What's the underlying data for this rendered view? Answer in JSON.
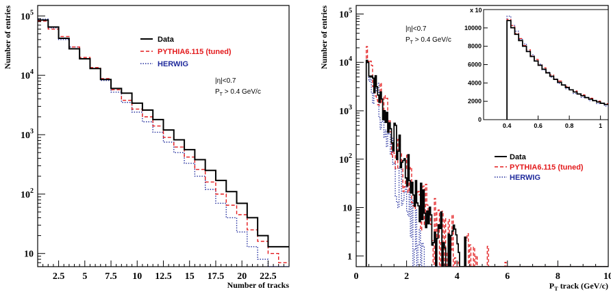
{
  "chart_data": [
    {
      "type": "histogram",
      "xlabel": "Number of tracks",
      "ylabel": "Number of entries",
      "xlim": [
        0.5,
        24.5
      ],
      "ylim": [
        6,
        150000
      ],
      "yscale": "log",
      "xticks": [
        "2.5",
        "5",
        "7.5",
        "10",
        "12.5",
        "15",
        "17.5",
        "20",
        "22.5"
      ],
      "yticks": [
        {
          "base": "10",
          "exp": "5"
        },
        {
          "base": "10",
          "exp": "4"
        },
        {
          "base": "10",
          "exp": "3"
        },
        {
          "base": "10",
          "exp": "2"
        },
        {
          "base": "10",
          "exp": ""
        }
      ],
      "bin_edges": [
        0.5,
        1.5,
        2.5,
        3.5,
        4.5,
        5.5,
        6.5,
        7.5,
        8.5,
        9.5,
        10.5,
        11.5,
        12.5,
        13.5,
        14.5,
        15.5,
        16.5,
        17.5,
        18.5,
        19.5,
        20.5,
        21.5,
        22.5,
        23.5,
        24.5
      ],
      "series": [
        {
          "name": "Data",
          "color": "#000000",
          "style": "solid",
          "values": [
            85000,
            65000,
            42000,
            28000,
            19000,
            13000,
            8500,
            6000,
            5000,
            3400,
            2600,
            1800,
            1200,
            820,
            560,
            380,
            250,
            170,
            110,
            70,
            40,
            20,
            13,
            13
          ]
        },
        {
          "name": "PYTHIA6.115 (tuned)",
          "color": "#e31a1c",
          "style": "dashed",
          "values": [
            82000,
            60000,
            45000,
            30000,
            20000,
            13500,
            8800,
            5700,
            3800,
            2700,
            2000,
            1400,
            900,
            620,
            420,
            260,
            160,
            100,
            65,
            45,
            25,
            16,
            10,
            7
          ]
        },
        {
          "name": "HERWIG",
          "color": "#1f2a9c",
          "style": "dotted",
          "values": [
            88000,
            63000,
            40000,
            30000,
            19000,
            13000,
            8200,
            5200,
            3500,
            2400,
            1650,
            1100,
            750,
            500,
            330,
            200,
            120,
            70,
            40,
            23,
            13,
            8,
            6,
            5
          ]
        }
      ],
      "annotation": [
        "|η|<0.7",
        "P",
        "T",
        " > 0.4 GeV/c"
      ],
      "legend_position": "top-right"
    },
    {
      "type": "histogram",
      "xlabel": [
        "P",
        "T",
        " track (GeV/c)"
      ],
      "ylabel": "Number of entries",
      "xlim": [
        0,
        10
      ],
      "ylim": [
        0.6,
        150000
      ],
      "yscale": "log",
      "xticks": [
        "0",
        "2",
        "4",
        "6",
        "8",
        "10"
      ],
      "yticks": [
        {
          "base": "10",
          "exp": "5"
        },
        {
          "base": "10",
          "exp": "4"
        },
        {
          "base": "10",
          "exp": "3"
        },
        {
          "base": "10",
          "exp": "2"
        },
        {
          "base": "10",
          "exp": ""
        },
        {
          "base": "1",
          "exp": ""
        }
      ],
      "bin_width": 0.05,
      "xmin_data": 0.4,
      "series": [
        {
          "name": "Data",
          "color": "#000000",
          "style": "solid",
          "model": {
            "a": 11000,
            "k": 1.58,
            "b": 5200,
            "k2": 0.62,
            "noise": 0.22,
            "seed": 7
          }
        },
        {
          "name": "PYTHIA6.115 (tuned)",
          "color": "#e31a1c",
          "style": "dashed",
          "model": {
            "a": 11000,
            "k": 1.62,
            "b": 5000,
            "k2": 0.64,
            "noise": 0.3,
            "seed": 19
          }
        },
        {
          "name": "HERWIG",
          "color": "#1f2a9c",
          "style": "dotted",
          "model": {
            "a": 10500,
            "k": 2.05,
            "b": 1400,
            "k2": 1.35,
            "noise": 0.35,
            "seed": 31
          }
        }
      ],
      "annotation": [
        "|η|<0.7",
        "P",
        "T",
        " > 0.4 GeV/c"
      ],
      "legend_position": "bottom-right",
      "inset": {
        "xlim": [
          0.25,
          1.05
        ],
        "ylim": [
          0,
          12000
        ],
        "xticks": [
          "0.4",
          "0.6",
          "0.8",
          "1"
        ],
        "yticks": [
          "0",
          "2000",
          "4000",
          "6000",
          "8000",
          "10000"
        ],
        "scale_label": "x 10"
      }
    }
  ]
}
